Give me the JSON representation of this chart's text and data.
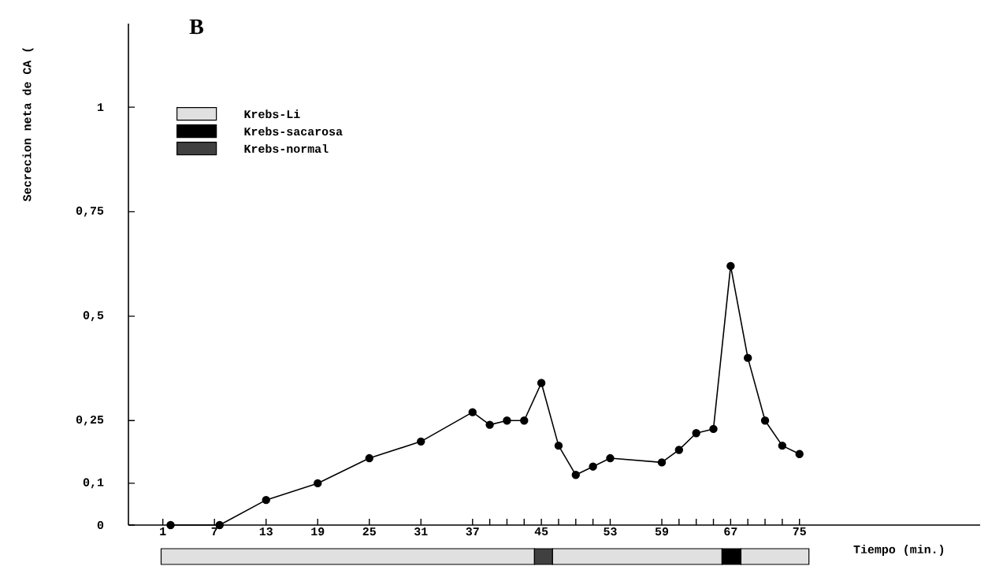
{
  "chart_data": {
    "type": "line",
    "title": "B",
    "xlabel": "Tiempo (min.)",
    "ylabel": "Secrecion neta de CA (",
    "x": [
      1.9,
      7.6,
      13,
      19,
      25,
      31,
      37,
      39,
      41,
      43,
      45,
      47,
      49,
      51,
      53,
      59,
      61,
      63,
      65,
      67,
      69,
      71,
      73,
      75
    ],
    "series": [
      {
        "color": "#000000",
        "values": [
          0,
          0,
          0.06,
          0.1,
          0.16,
          0.2,
          0.27,
          0.24,
          0.25,
          0.25,
          0.34,
          0.19,
          0.12,
          0.14,
          0.16,
          0.15,
          0.18,
          0.22,
          0.23,
          0.62,
          0.4,
          0.25,
          0.19,
          0.17
        ]
      }
    ],
    "xlim": [
      -3,
      96
    ],
    "ylim": [
      0,
      1.2
    ],
    "xticks": [
      1,
      7,
      13,
      19,
      25,
      31,
      37,
      {
        "value": 39,
        "label": null
      },
      {
        "value": 41,
        "label": null
      },
      {
        "value": 43,
        "label": null
      },
      45,
      {
        "value": 47,
        "label": null
      },
      {
        "value": 49,
        "label": null
      },
      {
        "value": 51,
        "label": null
      },
      53,
      59,
      {
        "value": 61,
        "label": null
      },
      {
        "value": 63,
        "label": null
      },
      {
        "value": 65,
        "label": null
      },
      67,
      {
        "value": 69,
        "label": null
      },
      {
        "value": 71,
        "label": null
      },
      {
        "value": 73,
        "label": null
      },
      75
    ],
    "yticks": [
      0,
      {
        "value": 0.1,
        "label": "0,1"
      },
      {
        "value": 0.25,
        "label": "0,25"
      },
      {
        "value": 0.5,
        "label": "0,5"
      },
      {
        "value": 0.75,
        "label": "0,75"
      },
      1
    ],
    "annotations": [
      "Krebs-Li",
      "Krebs-sacarosa",
      "Krebs-normal"
    ],
    "marker": "circle",
    "line_style": "solid",
    "grid": false
  }
}
